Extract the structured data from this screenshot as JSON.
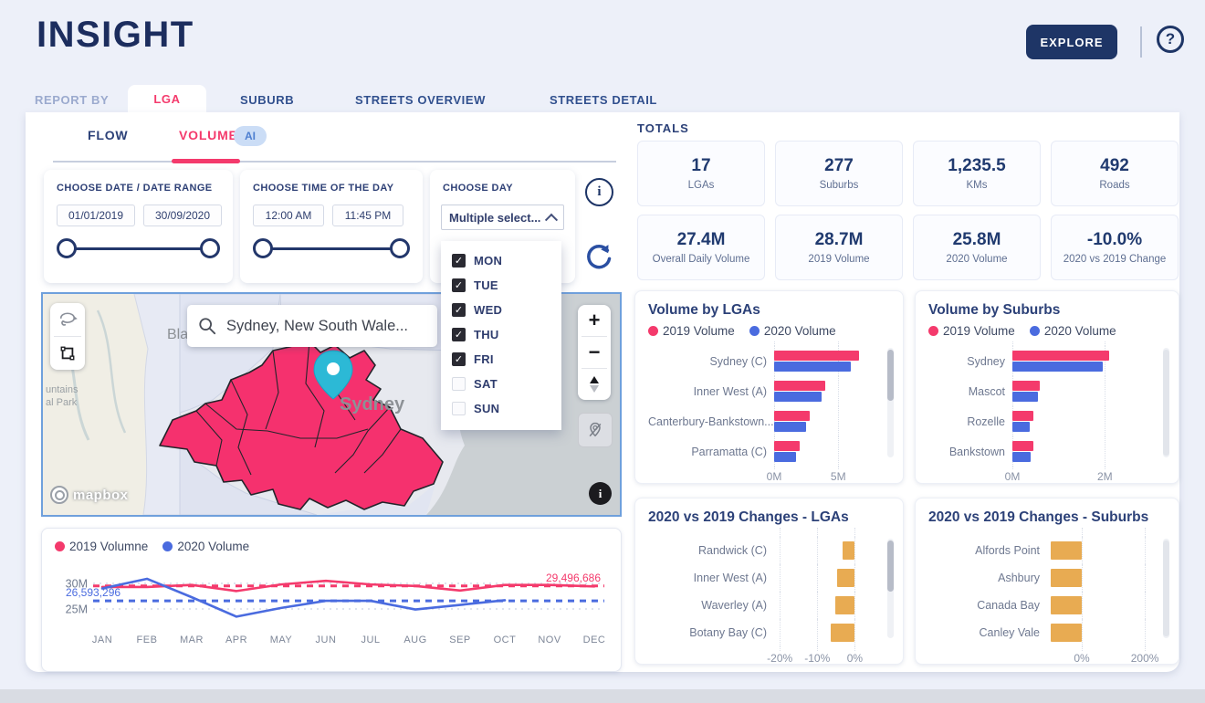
{
  "header": {
    "logo": "INSIGHT",
    "explore": "EXPLORE"
  },
  "icons": {
    "help": "?",
    "info": "i",
    "map_info": "i",
    "zoom_in": "+",
    "zoom_out": "−",
    "check": "✓"
  },
  "report_nav": {
    "label": "REPORT BY",
    "tabs": [
      "LGA",
      "SUBURB",
      "STREETS OVERVIEW",
      "STREETS DETAIL"
    ],
    "active": "LGA"
  },
  "view_tabs": {
    "tabs": [
      "FLOW",
      "VOLUME"
    ],
    "active": "VOLUME",
    "ai_badge": "AI"
  },
  "filters": {
    "date": {
      "title": "CHOOSE DATE / DATE RANGE",
      "start": "01/01/2019",
      "end": "30/09/2020"
    },
    "time": {
      "title": "CHOOSE TIME OF THE DAY",
      "start": "12:00 AM",
      "end": "11:45 PM"
    },
    "day": {
      "title": "CHOOSE DAY",
      "select_label": "Multiple select...",
      "options": [
        {
          "label": "MON",
          "checked": true
        },
        {
          "label": "TUE",
          "checked": true
        },
        {
          "label": "WED",
          "checked": true
        },
        {
          "label": "THU",
          "checked": true
        },
        {
          "label": "FRI",
          "checked": true
        },
        {
          "label": "SAT",
          "checked": false
        },
        {
          "label": "SUN",
          "checked": false
        }
      ]
    }
  },
  "map": {
    "search_value": "Sydney, New South Wale...",
    "city_label": "Sydney",
    "edge_labels": {
      "top": "Bla",
      "left1": "untains",
      "left2": "al Park"
    },
    "attribution": "mapbox",
    "region_color": "#F5316E",
    "marker_color": "#2CB9D6"
  },
  "totals": {
    "title": "TOTALS",
    "cards": [
      {
        "value": "17",
        "label": "LGAs"
      },
      {
        "value": "277",
        "label": "Suburbs"
      },
      {
        "value": "1,235.5",
        "label": "KMs"
      },
      {
        "value": "492",
        "label": "Roads"
      },
      {
        "value": "27.4M",
        "label": "Overall Daily Volume"
      },
      {
        "value": "28.7M",
        "label": "2019 Volume"
      },
      {
        "value": "25.8M",
        "label": "2020 Volume"
      },
      {
        "value": "-10.0%",
        "label": "2020 vs 2019 Change"
      }
    ]
  },
  "colors": {
    "accent_pink": "#F43A6C",
    "accent_blue": "#4A6BDF",
    "orange": "#E8AB52",
    "navy": "#1D3466"
  },
  "chart_data": [
    {
      "id": "volume_by_lgas",
      "type": "bar",
      "orientation": "horizontal",
      "title": "Volume by LGAs",
      "categories": [
        "Sydney (C)",
        "Inner West (A)",
        "Canterbury-Bankstown...",
        "Parramatta (C)"
      ],
      "series": [
        {
          "name": "2019 Volume",
          "color": "#F43A6C",
          "values": [
            6.6,
            4.0,
            2.8,
            2.0
          ]
        },
        {
          "name": "2020 Volume",
          "color": "#4A6BDF",
          "values": [
            6.0,
            3.7,
            2.5,
            1.7
          ]
        }
      ],
      "unit": "millions",
      "xlim": [
        0,
        7.9
      ],
      "xticks": [
        {
          "value": 0,
          "label": "0M"
        },
        {
          "value": 5,
          "label": "5M"
        }
      ],
      "legend_position": "top",
      "grid": "dotted-vertical"
    },
    {
      "id": "volume_by_suburbs",
      "type": "bar",
      "orientation": "horizontal",
      "title": "Volume by Suburbs",
      "categories": [
        "Sydney",
        "Mascot",
        "Rozelle",
        "Bankstown"
      ],
      "series": [
        {
          "name": "2019 Volume",
          "color": "#F43A6C",
          "values": [
            2.1,
            0.6,
            0.45,
            0.45
          ]
        },
        {
          "name": "2020 Volume",
          "color": "#4A6BDF",
          "values": [
            1.95,
            0.55,
            0.38,
            0.4
          ]
        }
      ],
      "unit": "millions",
      "xlim": [
        0,
        3
      ],
      "xticks": [
        {
          "value": 0,
          "label": "0M"
        },
        {
          "value": 2,
          "label": "2M"
        }
      ],
      "legend_position": "top",
      "grid": "dotted-vertical"
    },
    {
      "id": "changes_lgas",
      "type": "bar",
      "orientation": "horizontal",
      "title": "2020 vs 2019 Changes - LGAs",
      "categories": [
        "Randwick (C)",
        "Inner West (A)",
        "Waverley (A)",
        "Botany Bay (C)"
      ],
      "series": [
        {
          "name": "2020 vs 2019 Change",
          "color": "#E8AB52",
          "values": [
            -3.3,
            -4.8,
            -5.2,
            -6.5
          ]
        }
      ],
      "unit": "%",
      "xlim": [
        -21.5,
        5.5
      ],
      "xticks": [
        {
          "value": -20,
          "label": "-20%"
        },
        {
          "value": -10,
          "label": "-10%"
        },
        {
          "value": 0,
          "label": "0%"
        }
      ],
      "grid": "dotted-vertical"
    },
    {
      "id": "changes_suburbs",
      "type": "bar",
      "orientation": "horizontal",
      "title": "2020 vs 2019 Changes - Suburbs",
      "categories": [
        "Alfords Point",
        "Ashbury",
        "Canada Bay",
        "Canley Vale"
      ],
      "series": [
        {
          "name": "2020 vs 2019 Change",
          "color": "#E8AB52",
          "values": [
            -99,
            -99,
            -98,
            -98
          ]
        }
      ],
      "unit": "%",
      "xlim": [
        -110,
        220
      ],
      "xticks": [
        {
          "value": 0,
          "label": "0%"
        },
        {
          "value": 200,
          "label": "200%"
        }
      ],
      "grid": "dotted-vertical"
    },
    {
      "id": "monthly_volume",
      "type": "line",
      "title": "",
      "x_labels": [
        "JAN",
        "FEB",
        "MAR",
        "APR",
        "MAY",
        "JUN",
        "JUL",
        "AUG",
        "SEP",
        "OCT",
        "NOV",
        "DEC"
      ],
      "yticks": [
        {
          "label": "30M",
          "value": 30
        },
        {
          "label": "25M",
          "value": 25
        }
      ],
      "ylim": [
        23,
        32
      ],
      "series": [
        {
          "name": "2019 Volumne",
          "color": "#F43A6C",
          "values": [
            29.3,
            29.3,
            29.7,
            28.5,
            29.8,
            30.5,
            29.8,
            29.5,
            28.6,
            29.7,
            29.7,
            29.4
          ]
        },
        {
          "name": "2020 Volume",
          "color": "#4A6BDF",
          "values": [
            29.0,
            30.9,
            27.3,
            23.5,
            25.2,
            26.6,
            26.6,
            24.9,
            25.8,
            26.7
          ]
        }
      ],
      "avg_lines": [
        {
          "label": "29,496,686",
          "value": 29.5,
          "color": "#F43A6C"
        },
        {
          "label": "26,593,296",
          "value": 26.59,
          "color": "#4A6BDF"
        }
      ],
      "legend_position": "top"
    }
  ]
}
